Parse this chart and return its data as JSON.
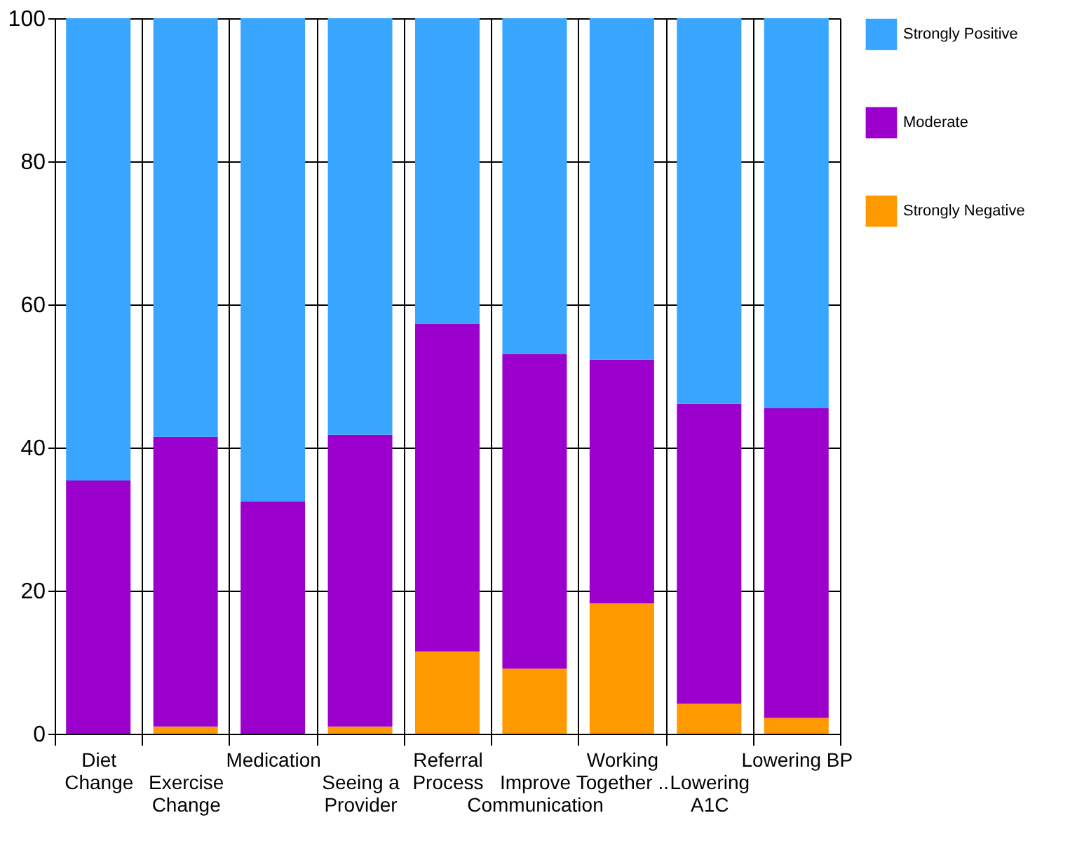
{
  "chart_data": {
    "type": "bar",
    "stacked": true,
    "categories": [
      "Diet Change",
      "Exercise Change",
      "Medication",
      "Seeing a Provider",
      "Referral Process",
      "Improve Communication",
      "Working Together ..",
      "Lowering A1C",
      "Lowering BP"
    ],
    "series": [
      {
        "name": "Strongly Negative",
        "color": "#ff9900",
        "values": [
          0,
          1,
          0,
          1,
          11.5,
          9.1,
          18.2,
          4.2,
          2.2
        ]
      },
      {
        "name": "Moderate",
        "color": "#9b00cc",
        "values": [
          35.4,
          40.5,
          32.5,
          40.8,
          45.8,
          44.0,
          34.1,
          41.9,
          43.3
        ]
      },
      {
        "name": "Strongly Positive",
        "color": "#38a6ff",
        "values": [
          64.6,
          58.5,
          67.5,
          58.2,
          42.7,
          46.9,
          47.7,
          53.9,
          54.5
        ]
      }
    ],
    "ylim": [
      0,
      100
    ],
    "yticks": [
      0,
      20,
      40,
      60,
      80,
      100
    ],
    "grid": true,
    "legend": "right"
  }
}
